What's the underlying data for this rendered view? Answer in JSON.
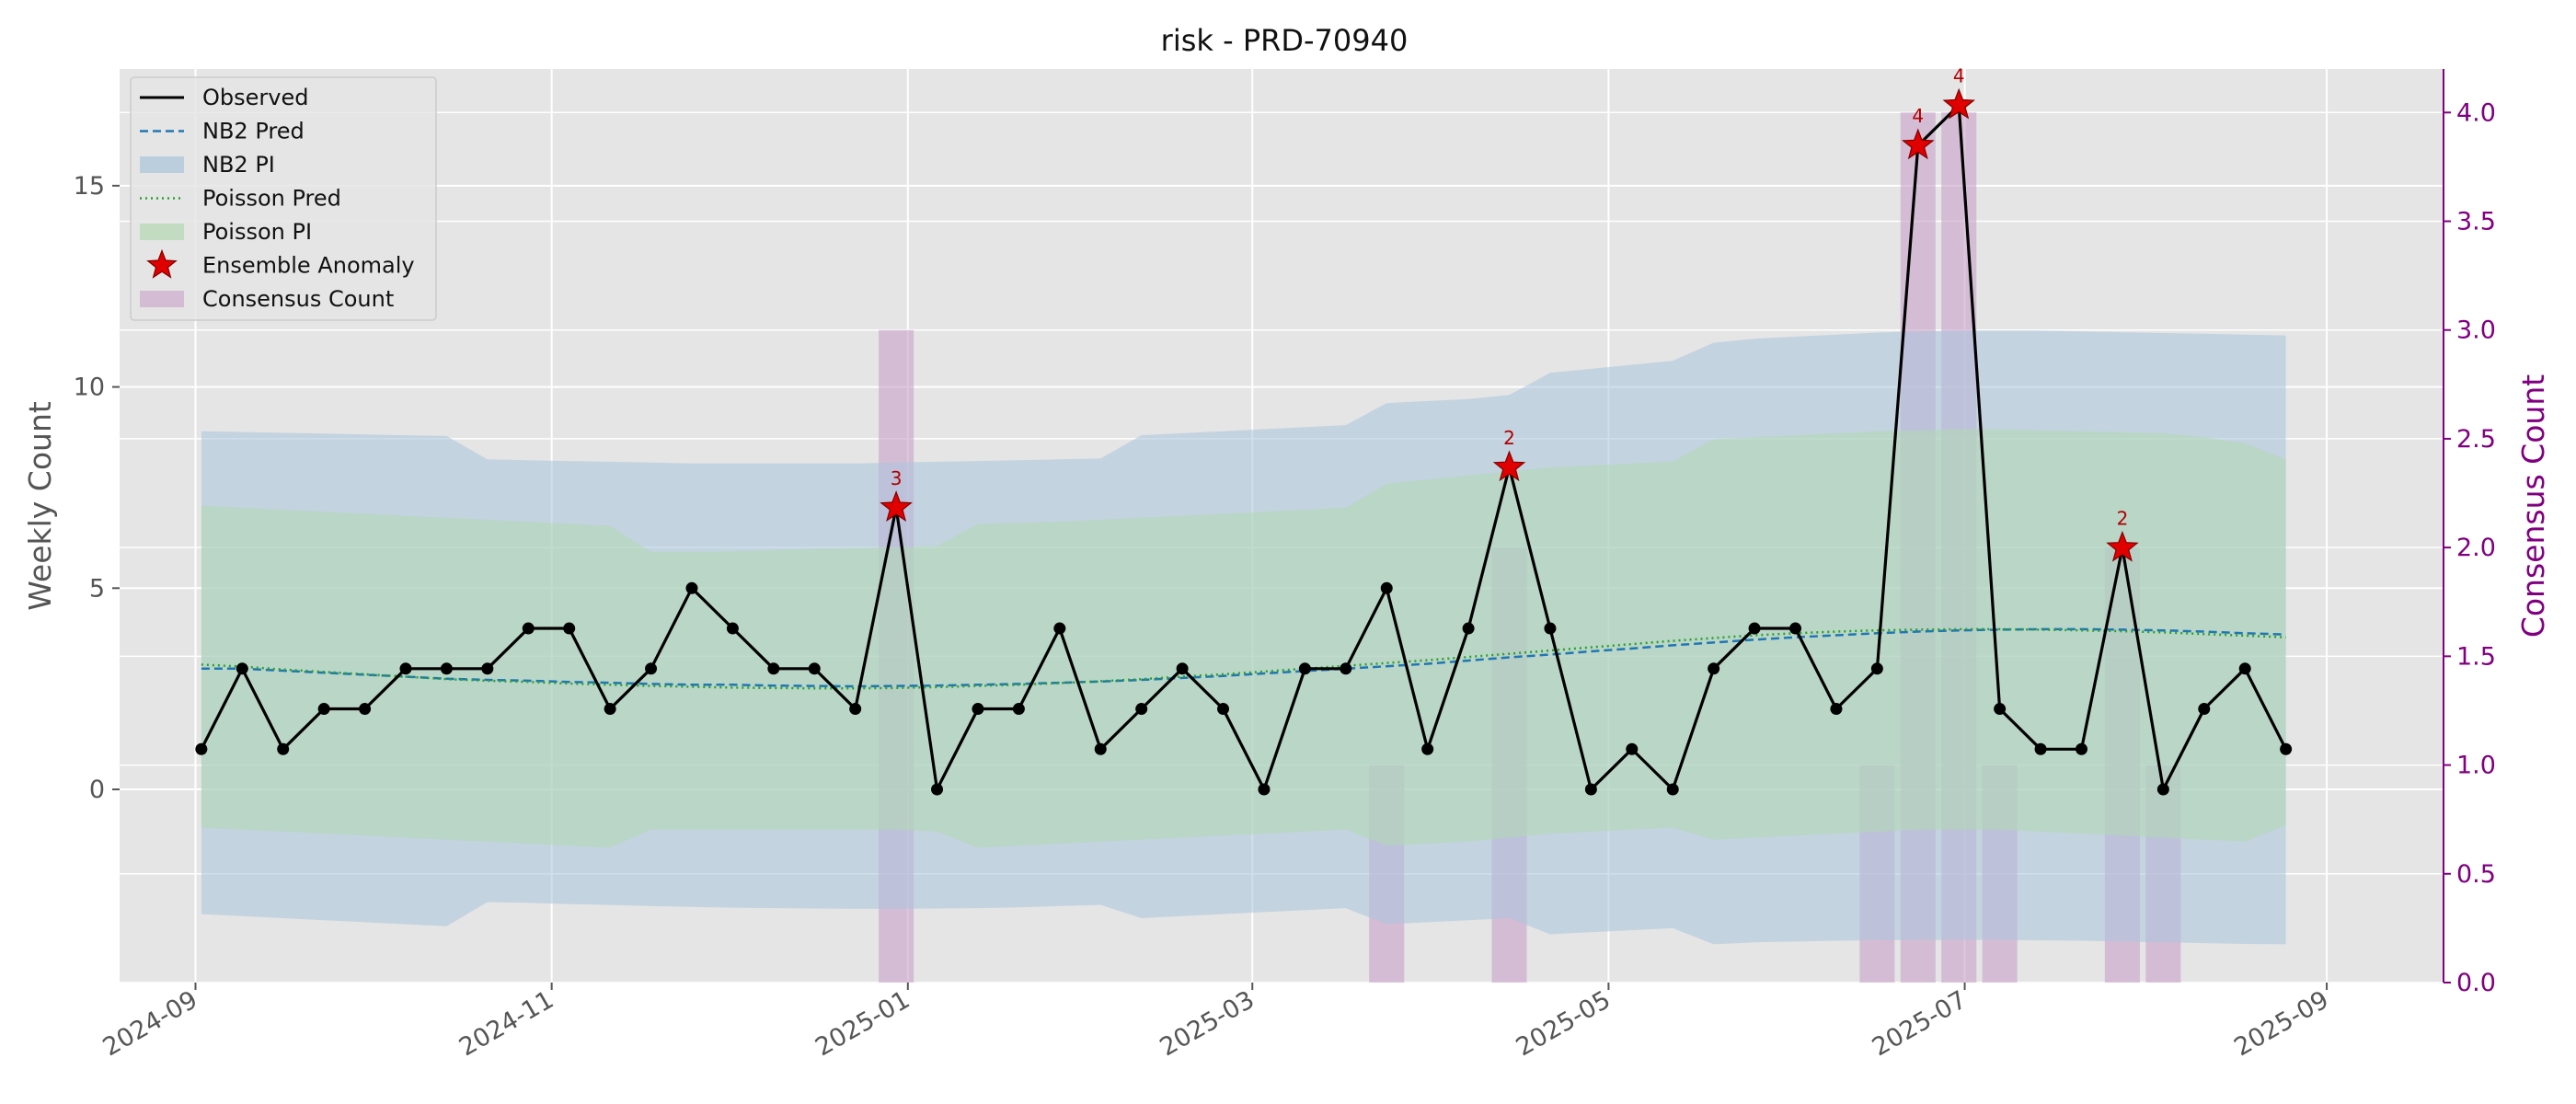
{
  "chart_data": {
    "type": "line",
    "title": "risk - PRD-70940",
    "ylabel": "Weekly Count",
    "y2label": "Consensus Count",
    "xlabel": "",
    "x_tick_labels": [
      "2024-09",
      "2024-11",
      "2025-01",
      "2025-03",
      "2025-05",
      "2025-07",
      "2025-09"
    ],
    "x_tick_dates": [
      "2024-09-01",
      "2024-11-01",
      "2025-01-01",
      "2025-03-01",
      "2025-05-01",
      "2025-07-01",
      "2025-09-01"
    ],
    "y_ticks": [
      0,
      5,
      10,
      15
    ],
    "y2_ticks": [
      "0.0",
      "0.5",
      "1.0",
      "1.5",
      "2.0",
      "2.5",
      "3.0",
      "3.5",
      "4.0"
    ],
    "xlim": [
      "2024-08-19",
      "2025-09-21"
    ],
    "ylim": [
      -4.8,
      17.9
    ],
    "y2lim": [
      0,
      4.2
    ],
    "grid": true,
    "legend_position": "top-left",
    "legend": [
      "Observed",
      "NB2 Pred",
      "NB2 PI",
      "Poisson Pred",
      "Poisson PI",
      "Ensemble Anomaly",
      "Consensus Count"
    ],
    "colors": {
      "observed": "#000000",
      "nb2": "#1f77b4",
      "nb2_pi": "#a9c4dc",
      "poisson": "#2ca02c",
      "poisson_pi": "#b2d8b2",
      "anomaly": "#e00000",
      "consensus": "#c8a2c8",
      "background": "#e5e5e5",
      "y2_axis": "#800080"
    },
    "dates": [
      "2024-09-02",
      "2024-09-09",
      "2024-09-16",
      "2024-09-23",
      "2024-09-30",
      "2024-10-07",
      "2024-10-14",
      "2024-10-21",
      "2024-10-28",
      "2024-11-04",
      "2024-11-11",
      "2024-11-18",
      "2024-11-25",
      "2024-12-02",
      "2024-12-09",
      "2024-12-16",
      "2024-12-23",
      "2024-12-30",
      "2025-01-06",
      "2025-01-13",
      "2025-01-20",
      "2025-01-27",
      "2025-02-03",
      "2025-02-10",
      "2025-02-17",
      "2025-02-24",
      "2025-03-03",
      "2025-03-10",
      "2025-03-17",
      "2025-03-24",
      "2025-03-31",
      "2025-04-07",
      "2025-04-14",
      "2025-04-21",
      "2025-04-28",
      "2025-05-05",
      "2025-05-12",
      "2025-05-19",
      "2025-05-26",
      "2025-06-02",
      "2025-06-09",
      "2025-06-16",
      "2025-06-23",
      "2025-06-30",
      "2025-07-07",
      "2025-07-14",
      "2025-07-21",
      "2025-07-28",
      "2025-08-04",
      "2025-08-11",
      "2025-08-18",
      "2025-08-25"
    ],
    "series": [
      {
        "name": "Observed",
        "values": [
          1,
          3,
          1,
          2,
          2,
          3,
          3,
          3,
          4,
          4,
          2,
          3,
          5,
          4,
          3,
          3,
          2,
          7,
          0,
          2,
          2,
          4,
          1,
          2,
          3,
          2,
          0,
          3,
          3,
          5,
          1,
          4,
          8,
          4,
          0,
          1,
          0,
          3,
          4,
          4,
          2,
          3,
          16,
          17,
          2,
          1,
          1,
          6,
          0,
          2,
          3,
          1
        ]
      },
      {
        "name": "NB2 Pred",
        "values": [
          3.0,
          3.0,
          2.95,
          2.9,
          2.85,
          2.8,
          2.75,
          2.72,
          2.7,
          2.67,
          2.65,
          2.62,
          2.6,
          2.6,
          2.58,
          2.57,
          2.56,
          2.57,
          2.58,
          2.6,
          2.62,
          2.65,
          2.68,
          2.72,
          2.77,
          2.82,
          2.88,
          2.94,
          3.0,
          3.06,
          3.12,
          3.2,
          3.28,
          3.35,
          3.43,
          3.5,
          3.58,
          3.65,
          3.72,
          3.78,
          3.83,
          3.88,
          3.92,
          3.95,
          3.97,
          3.98,
          3.98,
          3.97,
          3.95,
          3.92,
          3.88,
          3.85
        ]
      },
      {
        "name": "Poisson Pred",
        "values": [
          3.1,
          3.05,
          2.98,
          2.92,
          2.86,
          2.8,
          2.74,
          2.7,
          2.67,
          2.63,
          2.6,
          2.57,
          2.55,
          2.53,
          2.52,
          2.51,
          2.51,
          2.52,
          2.54,
          2.57,
          2.6,
          2.64,
          2.69,
          2.74,
          2.8,
          2.86,
          2.93,
          3.0,
          3.07,
          3.14,
          3.21,
          3.29,
          3.37,
          3.45,
          3.53,
          3.61,
          3.69,
          3.76,
          3.83,
          3.88,
          3.92,
          3.95,
          3.97,
          3.98,
          3.98,
          3.97,
          3.95,
          3.93,
          3.9,
          3.86,
          3.82,
          3.78
        ]
      }
    ],
    "nb2_pi": {
      "lower": [
        -3.1,
        -3.15,
        -3.2,
        -3.25,
        -3.3,
        -3.35,
        -3.4,
        -2.8,
        -2.82,
        -2.85,
        -2.87,
        -2.9,
        -2.92,
        -2.94,
        -2.95,
        -2.96,
        -2.97,
        -2.97,
        -2.96,
        -2.95,
        -2.93,
        -2.9,
        -2.87,
        -3.2,
        -3.15,
        -3.1,
        -3.05,
        -3.0,
        -2.95,
        -3.35,
        -3.3,
        -3.25,
        -3.2,
        -3.6,
        -3.55,
        -3.5,
        -3.45,
        -3.85,
        -3.8,
        -3.78,
        -3.76,
        -3.75,
        -3.74,
        -3.74,
        -3.74,
        -3.75,
        -3.76,
        -3.78,
        -3.8,
        -3.82,
        -3.84,
        -3.85
      ],
      "upper": [
        8.9,
        8.88,
        8.86,
        8.84,
        8.82,
        8.8,
        8.78,
        8.2,
        8.18,
        8.16,
        8.14,
        8.12,
        8.1,
        8.1,
        8.1,
        8.1,
        8.1,
        8.12,
        8.14,
        8.16,
        8.18,
        8.2,
        8.22,
        8.8,
        8.85,
        8.9,
        8.95,
        9.0,
        9.05,
        9.6,
        9.65,
        9.7,
        9.8,
        10.35,
        10.45,
        10.55,
        10.65,
        11.1,
        11.2,
        11.25,
        11.3,
        11.35,
        11.38,
        11.4,
        11.4,
        11.4,
        11.38,
        11.36,
        11.34,
        11.32,
        11.3,
        11.28
      ]
    },
    "poisson_pi": {
      "lower": [
        -0.95,
        -1.0,
        -1.05,
        -1.1,
        -1.15,
        -1.2,
        -1.25,
        -1.3,
        -1.35,
        -1.4,
        -1.45,
        -1.0,
        -1.0,
        -1.0,
        -1.0,
        -1.0,
        -1.0,
        -1.0,
        -1.05,
        -1.45,
        -1.4,
        -1.35,
        -1.3,
        -1.25,
        -1.2,
        -1.15,
        -1.1,
        -1.05,
        -1.0,
        -1.4,
        -1.35,
        -1.3,
        -1.2,
        -1.1,
        -1.05,
        -1.0,
        -0.95,
        -1.25,
        -1.2,
        -1.15,
        -1.1,
        -1.05,
        -1.0,
        -1.0,
        -1.0,
        -1.05,
        -1.1,
        -1.15,
        -1.2,
        -1.25,
        -1.3,
        -0.9
      ],
      "upper": [
        7.05,
        7.0,
        6.95,
        6.9,
        6.85,
        6.8,
        6.75,
        6.7,
        6.65,
        6.6,
        6.55,
        5.9,
        5.9,
        5.92,
        5.95,
        5.98,
        6.0,
        6.02,
        6.05,
        6.6,
        6.62,
        6.65,
        6.7,
        6.75,
        6.8,
        6.85,
        6.9,
        6.95,
        7.0,
        7.6,
        7.7,
        7.8,
        7.9,
        8.0,
        8.05,
        8.1,
        8.15,
        8.7,
        8.75,
        8.8,
        8.85,
        8.9,
        8.92,
        8.95,
        8.95,
        8.92,
        8.9,
        8.88,
        8.85,
        8.75,
        8.6,
        8.2
      ]
    },
    "anomalies": [
      {
        "date": "2024-12-30",
        "value": 7,
        "label": "3"
      },
      {
        "date": "2025-04-14",
        "value": 8,
        "label": "2"
      },
      {
        "date": "2025-06-23",
        "value": 16,
        "label": "4"
      },
      {
        "date": "2025-06-30",
        "value": 17,
        "label": "4"
      },
      {
        "date": "2025-07-28",
        "value": 6,
        "label": "2"
      }
    ],
    "consensus_counts": [
      {
        "date": "2024-12-30",
        "value": 3
      },
      {
        "date": "2025-03-24",
        "value": 1
      },
      {
        "date": "2025-04-14",
        "value": 2
      },
      {
        "date": "2025-06-16",
        "value": 1
      },
      {
        "date": "2025-06-23",
        "value": 4
      },
      {
        "date": "2025-06-30",
        "value": 4
      },
      {
        "date": "2025-07-07",
        "value": 1
      },
      {
        "date": "2025-07-28",
        "value": 2
      },
      {
        "date": "2025-08-04",
        "value": 1
      }
    ]
  }
}
